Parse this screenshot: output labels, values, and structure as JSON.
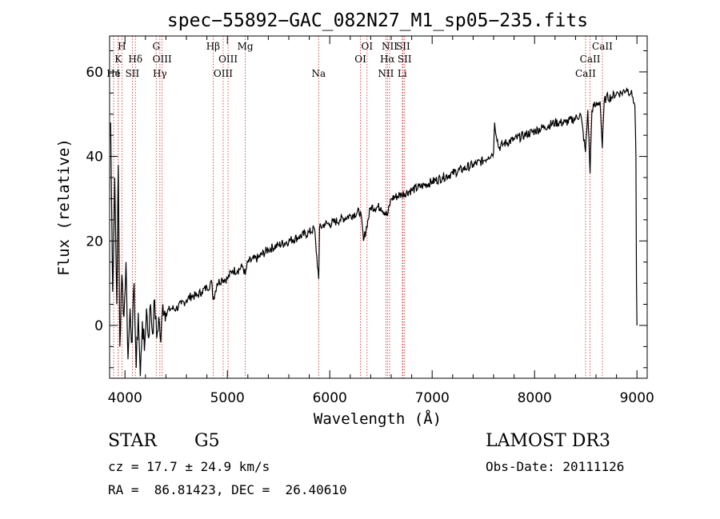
{
  "chart_data": {
    "type": "line",
    "title": "spec−55892−GAC_082N27_M1_sp05−235.fits",
    "xlabel": "Wavelength (Å)",
    "ylabel": "Flux (relative)",
    "xlim": [
      3850,
      9100
    ],
    "ylim": [
      -12.5,
      68.5
    ],
    "x_ticks": [
      4000,
      5000,
      6000,
      7000,
      8000,
      9000
    ],
    "y_ticks": [
      0,
      20,
      40,
      60
    ],
    "series": [
      {
        "name": "spectrum",
        "x": [
          3860,
          3880,
          3900,
          3920,
          3935,
          3950,
          3970,
          3990,
          4010,
          4030,
          4050,
          4070,
          4090,
          4110,
          4130,
          4150,
          4170,
          4190,
          4210,
          4230,
          4250,
          4270,
          4290,
          4310,
          4330,
          4350,
          4370,
          4400,
          4450,
          4500,
          4550,
          4600,
          4650,
          4700,
          4750,
          4800,
          4850,
          4861,
          4900,
          4950,
          5000,
          5050,
          5100,
          5150,
          5175,
          5200,
          5300,
          5400,
          5500,
          5600,
          5700,
          5800,
          5850,
          5892,
          5900,
          5950,
          6000,
          6100,
          6200,
          6300,
          6330,
          6400,
          6500,
          6563,
          6600,
          6700,
          6800,
          6900,
          7000,
          7100,
          7200,
          7300,
          7400,
          7500,
          7550,
          7600,
          7610,
          7650,
          7700,
          7800,
          7900,
          8000,
          8100,
          8200,
          8300,
          8400,
          8450,
          8498,
          8520,
          8542,
          8560,
          8580,
          8600,
          8640,
          8662,
          8680,
          8700,
          8750,
          8800,
          8850,
          8900,
          8940,
          8960,
          8980,
          8990,
          8995,
          9000
        ],
        "y": [
          48,
          8,
          35,
          5,
          38,
          -5,
          12,
          2,
          15,
          -8,
          4,
          -4,
          10,
          -10,
          3,
          -12,
          1,
          -6,
          4,
          -3,
          5,
          -2,
          6,
          -3,
          2,
          -4,
          5,
          3,
          4,
          4,
          5,
          6,
          7,
          7,
          8,
          9,
          10,
          6,
          10,
          11,
          11,
          13,
          13,
          14,
          12,
          15,
          16,
          18,
          19,
          20,
          21,
          22,
          23,
          11,
          23,
          24,
          24,
          25,
          26,
          27,
          20,
          28,
          28,
          26,
          30,
          31,
          32,
          33,
          34,
          35,
          36,
          37,
          38,
          39,
          40,
          41,
          48,
          42,
          43,
          44,
          45,
          46,
          47,
          48,
          48,
          49,
          50,
          41,
          51,
          36,
          51,
          52,
          52,
          53,
          42,
          53,
          54,
          54,
          55,
          55,
          56,
          55,
          54,
          52,
          40,
          10,
          0
        ]
      }
    ],
    "lines": [
      {
        "label": "H",
        "x": 3970,
        "row": 0
      },
      {
        "label": "K",
        "x": 3934,
        "row": 1
      },
      {
        "label": "He",
        "x": 3889,
        "row": 2
      },
      {
        "label": "I",
        "x": 3934,
        "row": 2
      },
      {
        "label": "SII",
        "x": 4072,
        "row": 2
      },
      {
        "label": "Hδ",
        "x": 4102,
        "row": 1
      },
      {
        "label": "G",
        "x": 4305,
        "row": 0
      },
      {
        "label": "OIII",
        "x": 4363,
        "row": 1
      },
      {
        "label": "Hγ",
        "x": 4341,
        "row": 2
      },
      {
        "label": "Hβ",
        "x": 4861,
        "row": 0
      },
      {
        "label": "OIII",
        "x": 5007,
        "row": 1
      },
      {
        "label": "OIII",
        "x": 4959,
        "row": 2
      },
      {
        "label": "Mg",
        "x": 5175,
        "row": 0
      },
      {
        "label": "Na",
        "x": 5892,
        "row": 2
      },
      {
        "label": "OI",
        "x": 6364,
        "row": 0
      },
      {
        "label": "OI",
        "x": 6300,
        "row": 1
      },
      {
        "label": "NII",
        "x": 6584,
        "row": 0
      },
      {
        "label": "SII",
        "x": 6716,
        "row": 0
      },
      {
        "label": "Hα",
        "x": 6563,
        "row": 1
      },
      {
        "label": "SII",
        "x": 6731,
        "row": 1
      },
      {
        "label": "NII",
        "x": 6548,
        "row": 2
      },
      {
        "label": "Li",
        "x": 6708,
        "row": 2
      },
      {
        "label": "CaII",
        "x": 8662,
        "row": 0
      },
      {
        "label": "CaII",
        "x": 8542,
        "row": 1
      },
      {
        "label": "CaII",
        "x": 8498,
        "row": 2
      }
    ]
  },
  "info": {
    "class": "STAR",
    "subclass": "G5",
    "survey": "LAMOST DR3",
    "cz": "cz = 17.7 ± 24.9 km/s",
    "obs_date": "Obs-Date: 20111126",
    "coords": "RA =  86.81423, DEC =  26.40610"
  },
  "colors": {
    "line_marker": "#cc2a2a",
    "spectrum": "#000000"
  }
}
